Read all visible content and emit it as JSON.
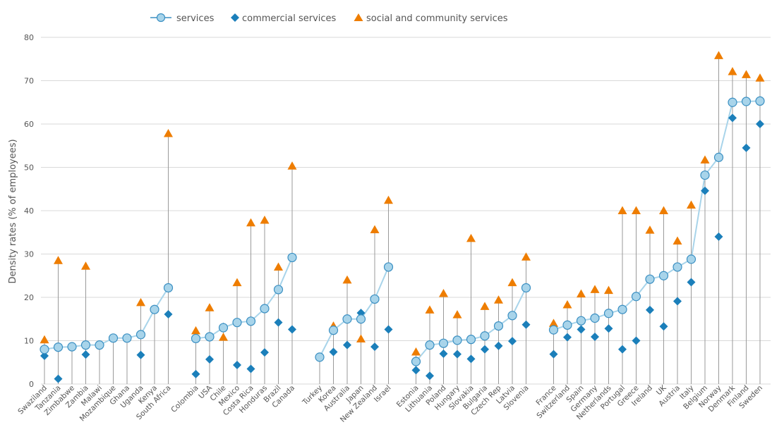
{
  "chart_data": {
    "type": "scatter",
    "ylabel": "Density rates (% of employees)",
    "ylim": [
      0,
      80
    ],
    "yticks": [
      0,
      10,
      20,
      30,
      40,
      50,
      60,
      70,
      80
    ],
    "grid": "horizontal",
    "legend_position": "top",
    "series_meta": [
      {
        "key": "services",
        "name": "services",
        "color": "#a8d4ea",
        "stroke": "#3a8fc2",
        "marker": "circle-line"
      },
      {
        "key": "commercial",
        "name": "commercial services",
        "color": "#1b7fba",
        "marker": "diamond"
      },
      {
        "key": "social",
        "name": "social and community services",
        "color": "#ee7d00",
        "marker": "triangle"
      }
    ],
    "groups": [
      {
        "countries": [
          {
            "name": "Swaziland",
            "services": 8,
            "commercial": 6.5,
            "social": 10.2
          },
          {
            "name": "Tanzania",
            "services": 8.5,
            "commercial": 1.2,
            "social": 28.5
          },
          {
            "name": "Zimbabwe",
            "services": 8.6,
            "commercial": null,
            "social": null
          },
          {
            "name": "Zambia",
            "services": 9,
            "commercial": 6.8,
            "social": 27.2
          },
          {
            "name": "Malawi",
            "services": 9,
            "commercial": null,
            "social": null
          },
          {
            "name": "Mozambique",
            "services": 10.6,
            "commercial": null,
            "social": null
          },
          {
            "name": "Ghana",
            "services": 10.6,
            "commercial": null,
            "social": null
          },
          {
            "name": "Uganda",
            "services": 11.4,
            "commercial": 6.7,
            "social": 18.8
          },
          {
            "name": "Kenya",
            "services": 17.2,
            "commercial": null,
            "social": null
          },
          {
            "name": "South Africa",
            "services": 22.2,
            "commercial": 16.1,
            "social": 57.8
          }
        ]
      },
      {
        "countries": [
          {
            "name": "Colombia",
            "services": 10.5,
            "commercial": 2.3,
            "social": 12.3
          },
          {
            "name": "USA",
            "services": 10.9,
            "commercial": 5.7,
            "social": 17.6
          },
          {
            "name": "Chile",
            "services": 13,
            "commercial": 13.2,
            "social": 10.8
          },
          {
            "name": "Mexico",
            "services": 14.2,
            "commercial": 4.4,
            "social": 23.4
          },
          {
            "name": "Costa Rica",
            "services": 14.5,
            "commercial": 3.5,
            "social": 37.2
          },
          {
            "name": "Honduras",
            "services": 17.4,
            "commercial": 7.3,
            "social": 37.8
          },
          {
            "name": "Brazil",
            "services": 21.8,
            "commercial": 14.2,
            "social": 27
          },
          {
            "name": "Canada",
            "services": 29.2,
            "commercial": 12.6,
            "social": 50.3
          }
        ]
      },
      {
        "countries": [
          {
            "name": "Turkey",
            "services": 6.2,
            "commercial": null,
            "social": null
          },
          {
            "name": "Korea",
            "services": 12.4,
            "commercial": 7.4,
            "social": 13.4
          },
          {
            "name": "Australia",
            "services": 15,
            "commercial": 9,
            "social": 24
          },
          {
            "name": "Japan",
            "services": 15,
            "commercial": 16.4,
            "social": 10.4
          },
          {
            "name": "New Zealand",
            "services": 19.6,
            "commercial": 8.6,
            "social": 35.6
          },
          {
            "name": "Israel",
            "services": 27,
            "commercial": 12.6,
            "social": 42.4
          }
        ]
      },
      {
        "countries": [
          {
            "name": "Estonia",
            "services": 5.2,
            "commercial": 3.2,
            "social": 7.4
          },
          {
            "name": "Lithuania",
            "services": 9,
            "commercial": 1.9,
            "social": 17.1
          },
          {
            "name": "Poland",
            "services": 9.4,
            "commercial": 7,
            "social": 20.9
          },
          {
            "name": "Hungary",
            "services": 10.1,
            "commercial": 6.9,
            "social": 16
          },
          {
            "name": "Slovakia",
            "services": 10.3,
            "commercial": 5.8,
            "social": 33.6
          },
          {
            "name": "Bulgaria",
            "services": 11.1,
            "commercial": 8,
            "social": 17.9
          },
          {
            "name": "Czech Rep",
            "services": 13.4,
            "commercial": 8.8,
            "social": 19.4
          },
          {
            "name": "Latvia",
            "services": 15.8,
            "commercial": 9.9,
            "social": 23.4
          },
          {
            "name": "Slovenia",
            "services": 22.2,
            "commercial": 13.7,
            "social": 29.3
          }
        ]
      },
      {
        "countries": [
          {
            "name": "France",
            "services": 12.5,
            "commercial": 6.9,
            "social": 14
          },
          {
            "name": "Switzerland",
            "services": 13.6,
            "commercial": 10.8,
            "social": 18.3
          },
          {
            "name": "Spain",
            "services": 14.6,
            "commercial": 12.6,
            "social": 20.8
          },
          {
            "name": "Germany",
            "services": 15.2,
            "commercial": 10.9,
            "social": 21.8
          },
          {
            "name": "Netherlands",
            "services": 16.3,
            "commercial": 12.8,
            "social": 21.6
          },
          {
            "name": "Portugal",
            "services": 17.2,
            "commercial": 8,
            "social": 40
          },
          {
            "name": "Greece",
            "services": 20.2,
            "commercial": 10,
            "social": 40
          },
          {
            "name": "Ireland",
            "services": 24.2,
            "commercial": 17.1,
            "social": 35.5
          },
          {
            "name": "UK",
            "services": 25,
            "commercial": 13.3,
            "social": 40
          },
          {
            "name": "Austria",
            "services": 27,
            "commercial": 19.1,
            "social": 33
          },
          {
            "name": "Italy",
            "services": 28.8,
            "commercial": 23.5,
            "social": 41.3
          },
          {
            "name": "Belgium",
            "services": 48.2,
            "commercial": 44.6,
            "social": 51.7
          },
          {
            "name": "Norway",
            "services": 52.3,
            "commercial": 34,
            "social": 75.8
          },
          {
            "name": "Denmark",
            "services": 65,
            "commercial": 61.4,
            "social": 72.1
          },
          {
            "name": "Finland",
            "services": 65.2,
            "commercial": 54.5,
            "social": 71.4
          },
          {
            "name": "Sweden",
            "services": 65.3,
            "commercial": 60,
            "social": 70.6
          }
        ]
      }
    ]
  }
}
